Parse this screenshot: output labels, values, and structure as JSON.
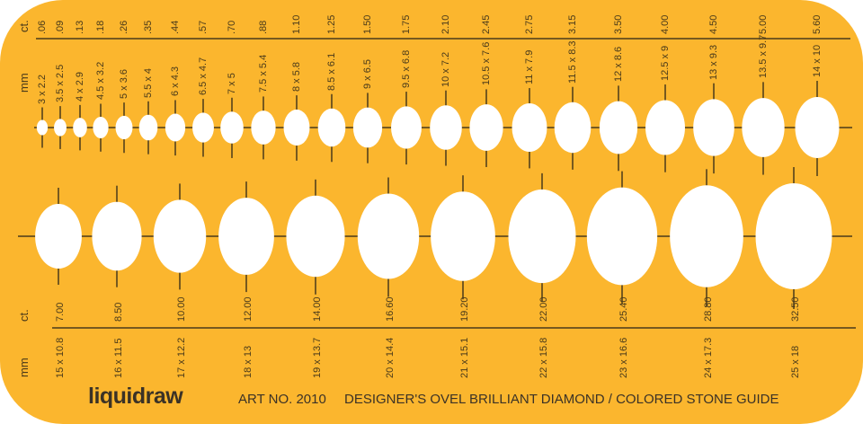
{
  "template": {
    "background_color": "#fbb62e",
    "ink_color": "#4a3a1a",
    "cutout_color": "#ffffff"
  },
  "top_row": {
    "ct_unit": "ct.",
    "mm_unit": "mm",
    "carats": [
      ".06",
      ".09",
      ".13",
      ".18",
      ".26",
      ".35",
      ".44",
      ".57",
      ".70",
      ".88",
      "1.10",
      "1.25",
      "1.50",
      "1.75",
      "2.10",
      "2.45",
      "2.75",
      "3.15",
      "3.50",
      "4.00",
      "4.50",
      "5.00",
      "5.60"
    ],
    "sizes_mm": [
      "3 x 2.2",
      "3.5 x 2.5",
      "4 x 2.9",
      "4.5 x 3.2",
      "5 x 3.6",
      "5.5 x 4",
      "6 x 4.3",
      "6.5 x 4.7",
      "7 x 5",
      "7.5 x 5.4",
      "8 x 5.8",
      "8.5 x 6.1",
      "9 x 6.5",
      "9.5 x 6.8",
      "10 x 7.2",
      "10.5 x 7.6",
      "11 x 7.9",
      "11.5 x 8.3",
      "12 x 8.6",
      "12.5 x 9",
      "13 x 9.3",
      "13.5 x 9.7",
      "14 x 10"
    ]
  },
  "bottom_row": {
    "ct_unit": "ct.",
    "mm_unit": "mm",
    "carats": [
      "7.00",
      "8.50",
      "10.00",
      "12.00",
      "14.00",
      "16.60",
      "19.20",
      "22.00",
      "25.40",
      "28.80",
      "32.50"
    ],
    "sizes_mm": [
      "15 x 10.8",
      "16 x 11.5",
      "17 x 12.2",
      "18 x 13",
      "19 x 13.7",
      "20 x 14.4",
      "21 x 15.1",
      "22 x 15.8",
      "23 x 16.6",
      "24 x 17.3",
      "25 x 18"
    ]
  },
  "footer": {
    "brand": "liquidraw",
    "art_no": "ART NO. 2010",
    "title": "DESIGNER'S OVEL BRILLIANT DIAMOND / COLORED STONE GUIDE"
  }
}
